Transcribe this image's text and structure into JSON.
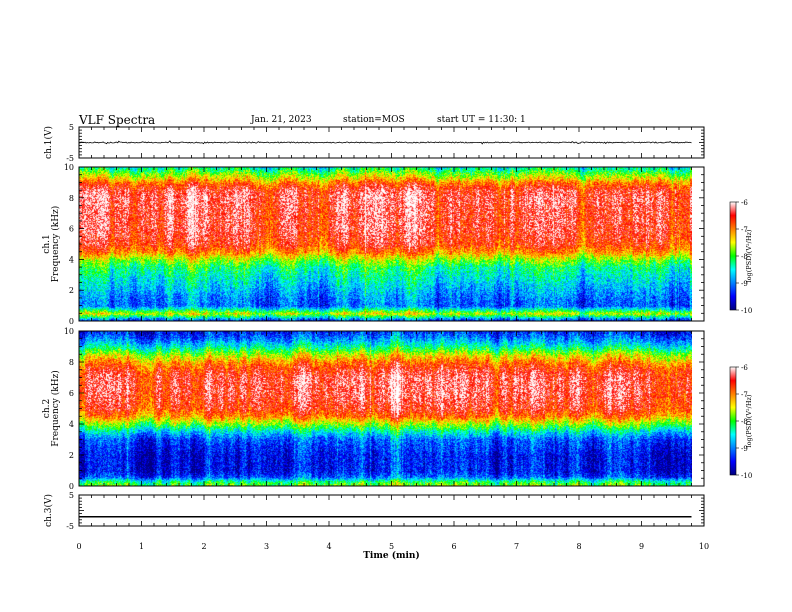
{
  "header": {
    "title": "VLF Spectra",
    "date": "Jan. 21, 2023",
    "station": "station=MOS",
    "start_time": "start UT =  11:30: 1"
  },
  "colors": {
    "spectrum_scale": [
      "#00007f",
      "#0000ff",
      "#0080ff",
      "#00ffff",
      "#00ff00",
      "#ffff00",
      "#ff8000",
      "#ff0000",
      "#ffffff"
    ],
    "trace": "#000000"
  },
  "chart_data": [
    {
      "type": "line",
      "id": "ch1",
      "ylabel": "ch.1(V)",
      "ylim": [
        -5,
        5
      ],
      "yticks": [
        "5",
        "-5"
      ],
      "x": [
        0,
        1,
        2,
        3,
        4,
        5,
        6,
        7,
        8,
        9,
        9.8
      ],
      "y": [
        0,
        0,
        0,
        0,
        0,
        0,
        0,
        0,
        0,
        0,
        0
      ],
      "xlim": [
        0,
        10
      ]
    },
    {
      "type": "heatmap",
      "id": "ch1_spec",
      "ylabel": "ch.1 Frequency (kHz)",
      "ylim": [
        0,
        10
      ],
      "yticks": [
        "0",
        "2",
        "4",
        "6",
        "8",
        "10"
      ],
      "xlim": [
        0,
        10
      ],
      "data_end": 9.8,
      "colorbar": {
        "label": "log(PSD)(V²/Hz)",
        "range": [
          -10,
          -6
        ],
        "ticks": [
          "-6",
          "-7",
          "-8",
          "-9",
          "-10"
        ]
      },
      "profile": {
        "freq_khz": [
          0,
          0.5,
          1,
          1.5,
          2,
          2.5,
          3,
          3.5,
          4,
          4.5,
          5,
          6,
          7,
          8,
          8.5,
          9,
          9.3,
          9.6,
          10
        ],
        "log_psd": [
          -9.5,
          -7.5,
          -9.1,
          -9.0,
          -8.8,
          -8.6,
          -8.4,
          -8.2,
          -7.7,
          -7.0,
          -6.6,
          -6.4,
          -6.4,
          -6.3,
          -6.4,
          -6.9,
          -7.4,
          -7.8,
          -8.4
        ]
      }
    },
    {
      "type": "heatmap",
      "id": "ch2_spec",
      "ylabel": "ch.2 Frequency (kHz)",
      "ylim": [
        0,
        10
      ],
      "yticks": [
        "0",
        "2",
        "4",
        "6",
        "8",
        "10"
      ],
      "xlim": [
        0,
        10
      ],
      "data_end": 9.8,
      "colorbar": {
        "label": "log(PSD)(V²/Hz)",
        "range": [
          -10,
          -6
        ],
        "ticks": [
          "-6",
          "-7",
          "-8",
          "-9",
          "-10"
        ]
      },
      "profile": {
        "freq_khz": [
          0,
          0.3,
          0.6,
          1,
          2,
          3,
          3.5,
          4,
          4.5,
          5,
          6,
          7,
          7.5,
          8,
          8.5,
          9,
          9.5,
          10
        ],
        "log_psd": [
          -7.8,
          -8.2,
          -9.2,
          -9.5,
          -9.5,
          -9.2,
          -8.6,
          -7.8,
          -7.0,
          -6.6,
          -6.4,
          -6.4,
          -6.6,
          -7.0,
          -7.6,
          -8.4,
          -9.0,
          -9.4
        ]
      }
    },
    {
      "type": "line",
      "id": "ch3",
      "ylabel": "ch.3(V)",
      "ylim": [
        -5,
        5
      ],
      "yticks": [
        "5",
        "-5"
      ],
      "x": [
        0,
        9.8
      ],
      "y": [
        -2,
        -2
      ],
      "xlim": [
        0,
        10
      ],
      "xlabel": "Time (min)",
      "xticks": [
        "0",
        "1",
        "2",
        "3",
        "4",
        "5",
        "6",
        "7",
        "8",
        "9",
        "10"
      ]
    }
  ]
}
